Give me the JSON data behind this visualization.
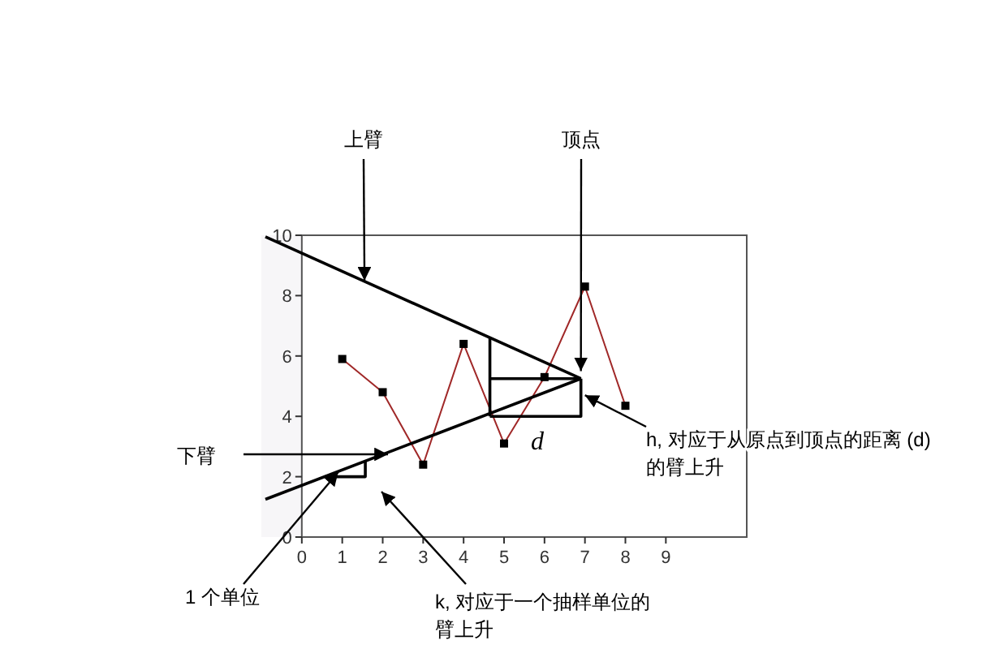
{
  "chart_data": {
    "type": "line",
    "xlim": [
      -1,
      11
    ],
    "ylim": [
      0,
      10
    ],
    "xticks": [
      0,
      1,
      2,
      3,
      4,
      5,
      6,
      7,
      8,
      9
    ],
    "yticks": [
      0,
      2,
      4,
      6,
      8,
      10
    ],
    "grid": false,
    "series": [
      {
        "type": "line",
        "color": "#a02828",
        "marker": "square",
        "x": [
          1,
          2,
          3,
          4,
          5,
          6,
          7,
          8
        ],
        "values": [
          5.9,
          4.8,
          2.4,
          6.4,
          3.1,
          5.3,
          8.3,
          4.35
        ]
      },
      {
        "type": "line",
        "color": "#000000",
        "marker": "none",
        "x": [
          -0.9,
          6.9
        ],
        "values": [
          9.95,
          5.25
        ]
      },
      {
        "type": "line",
        "color": "#000000",
        "marker": "none",
        "x": [
          -0.9,
          6.9
        ],
        "values": [
          1.25,
          5.25
        ]
      },
      {
        "type": "line",
        "color": "#000000",
        "marker": "none",
        "x": [
          4.65,
          4.65
        ],
        "values": [
          4.0,
          6.6
        ]
      },
      {
        "type": "line",
        "color": "#000000",
        "marker": "none",
        "x": [
          4.65,
          6.9
        ],
        "values": [
          5.25,
          5.25
        ]
      },
      {
        "type": "line",
        "color": "#000000",
        "marker": "none",
        "x": [
          4.65,
          6.9,
          6.9
        ],
        "values": [
          4.0,
          4.0,
          5.25
        ]
      },
      {
        "type": "line",
        "color": "#000000",
        "marker": "none",
        "x": [
          0.57,
          1.57,
          1.57
        ],
        "values": [
          2.0,
          2.0,
          2.52
        ]
      }
    ],
    "annotations": [
      {
        "text": "上臂",
        "x": 1.55,
        "y": 8.5
      },
      {
        "text": "顶点",
        "x": 6.9,
        "y": 5.5
      },
      "下臂",
      {
        "text": "1 个单位",
        "x": 0.9,
        "y": 2.15
      },
      "k, 对应于一个抽样单位的臂上升",
      {
        "text": "h, 对应于从原点到顶点的距离 (d) 的臂上升",
        "x": 7.0,
        "y": 4.7
      },
      "d"
    ]
  }
}
